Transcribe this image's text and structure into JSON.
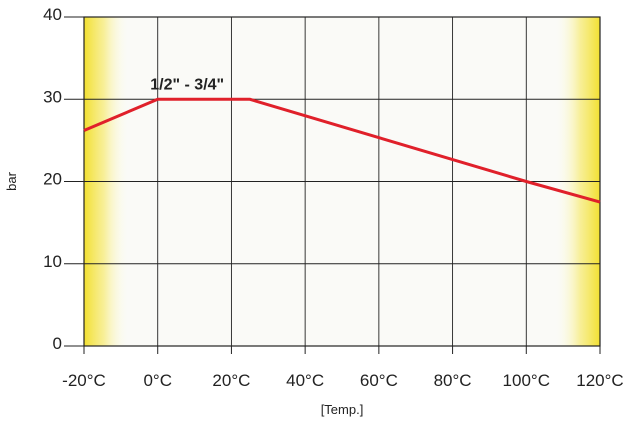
{
  "chart_data": {
    "type": "line",
    "title": "",
    "xlabel": "[Temp.]",
    "ylabel": "bar",
    "x_ticks": [
      -20,
      0,
      20,
      40,
      60,
      80,
      100,
      120
    ],
    "x_tick_labels": [
      "-20°C",
      "0°C",
      "20°C",
      "40°C",
      "60°C",
      "80°C",
      "100°C",
      "120°C"
    ],
    "y_ticks": [
      0,
      10,
      20,
      30,
      40
    ],
    "y_tick_labels": [
      "0",
      "10",
      "20",
      "30",
      "40"
    ],
    "xlim": [
      -20,
      120
    ],
    "ylim": [
      0,
      40
    ],
    "grid": true,
    "series": [
      {
        "name": "",
        "color": "#e0202a",
        "x": [
          -20,
          0,
          25,
          100,
          120
        ],
        "y": [
          26.2,
          30,
          30,
          20,
          17.5
        ]
      }
    ],
    "annotations": [
      {
        "text": "1/2\" - 3/4\"",
        "x": 8,
        "y": 31.2
      }
    ],
    "shaded_regions": [
      {
        "from": -20,
        "to": -8,
        "side": "left",
        "color": "#f2e030"
      },
      {
        "from": 108,
        "to": 120,
        "side": "right",
        "color": "#f2e030"
      }
    ]
  }
}
